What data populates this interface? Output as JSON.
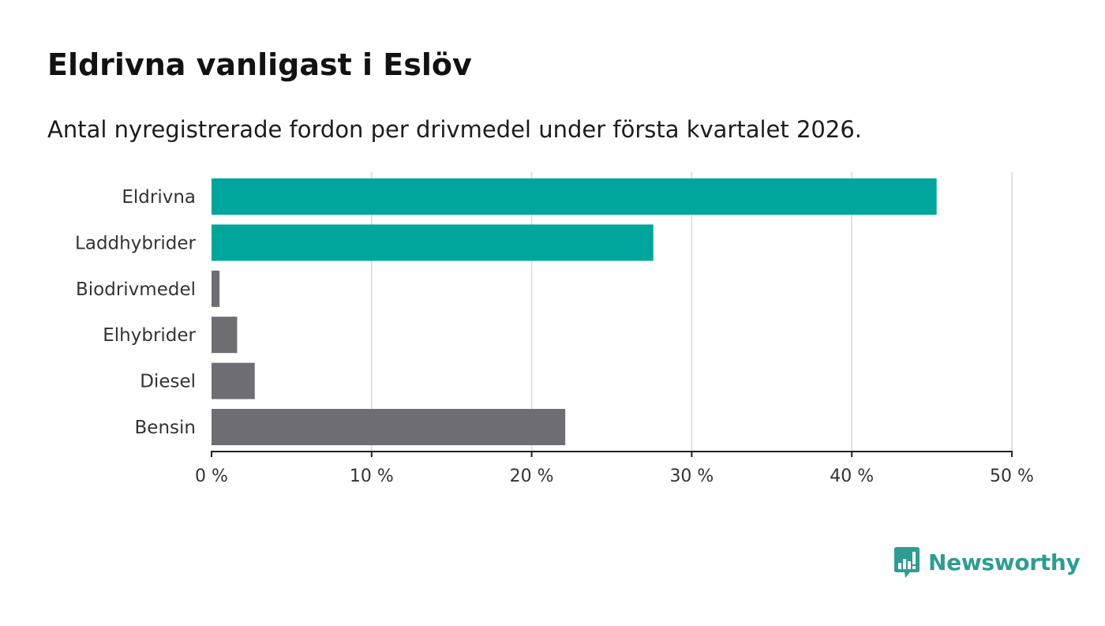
{
  "title": "Eldrivna vanligast i Eslöv",
  "subtitle": "Antal nyregistrerade fordon per drivmedel under första kvartalet 2026.",
  "brand": {
    "name": "Newsworthy",
    "color": "#2f9c92"
  },
  "colors": {
    "highlight": "#00a59b",
    "neutral": "#6e6d74",
    "grid": "#d9d9d9",
    "axis": "#222222"
  },
  "chart_data": {
    "type": "bar",
    "orientation": "horizontal",
    "title": "Eldrivna vanligast i Eslöv",
    "subtitle": "Antal nyregistrerade fordon per drivmedel under första kvartalet 2026.",
    "xlabel": "",
    "ylabel": "",
    "xlim": [
      0,
      50
    ],
    "grid": true,
    "ticks": [
      {
        "value": 0,
        "label": "0 %"
      },
      {
        "value": 10,
        "label": "10 %"
      },
      {
        "value": 20,
        "label": "20 %"
      },
      {
        "value": 30,
        "label": "30 %"
      },
      {
        "value": 40,
        "label": "40 %"
      },
      {
        "value": 50,
        "label": "50 %"
      }
    ],
    "categories": [
      "Eldrivna",
      "Laddhybrider",
      "Biodrivmedel",
      "Elhybrider",
      "Diesel",
      "Bensin"
    ],
    "values": [
      45.3,
      27.6,
      0.5,
      1.6,
      2.7,
      22.1
    ],
    "highlighted": [
      true,
      true,
      false,
      false,
      false,
      false
    ]
  }
}
